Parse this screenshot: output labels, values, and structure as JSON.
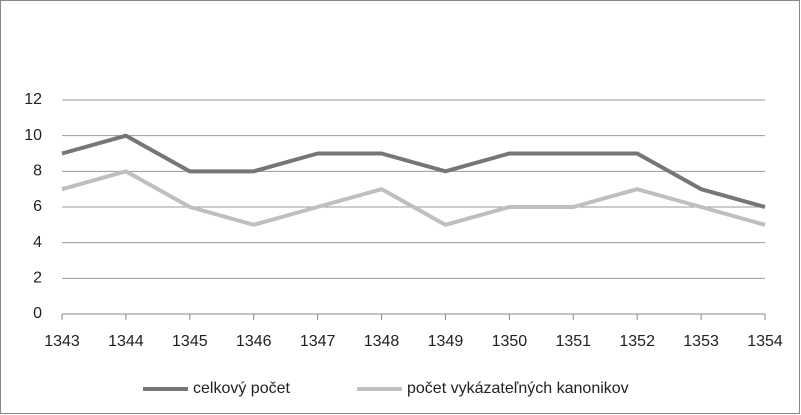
{
  "chart_data": {
    "type": "line",
    "x": [
      1343,
      1344,
      1345,
      1346,
      1347,
      1348,
      1349,
      1350,
      1351,
      1352,
      1353,
      1354
    ],
    "series": [
      {
        "name": "celkový počet",
        "color": "#767676",
        "values": [
          9,
          10,
          8,
          8,
          9,
          9,
          8,
          9,
          9,
          9,
          7,
          6
        ]
      },
      {
        "name": "počet vykázateľných kanonikov",
        "color": "#bfbfbf",
        "values": [
          7,
          8,
          6,
          5,
          6,
          7,
          5,
          6,
          6,
          7,
          6,
          5
        ]
      }
    ],
    "xlim": [
      1343,
      1354
    ],
    "xticks": [
      1343,
      1344,
      1345,
      1346,
      1347,
      1348,
      1349,
      1350,
      1351,
      1352,
      1353,
      1354
    ],
    "ylim": [
      0,
      12
    ],
    "yticks": [
      0,
      2,
      4,
      6,
      8,
      10,
      12
    ],
    "grid": true,
    "legend": "bottom"
  }
}
